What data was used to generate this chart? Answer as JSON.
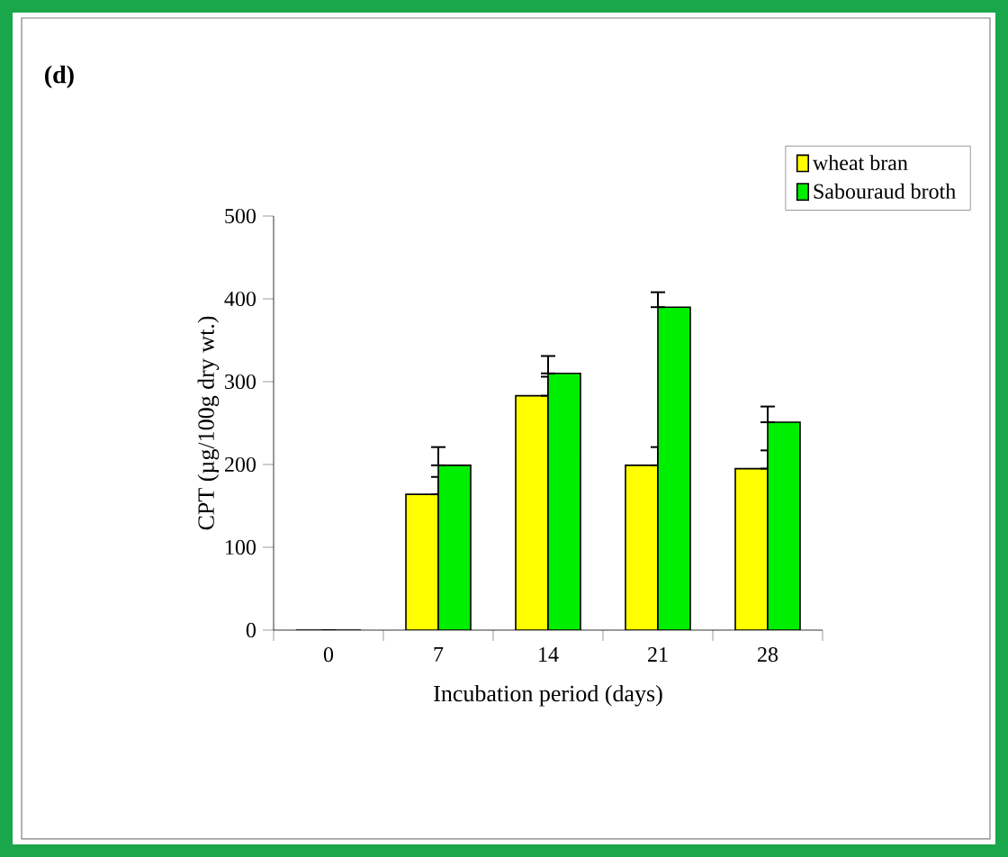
{
  "chart_data": {
    "type": "bar",
    "title": "(d)",
    "xlabel": "Incubation period (days)",
    "ylabel": "CPT (µg/100g dry wt.)",
    "categories": [
      "0",
      "7",
      "14",
      "21",
      "28"
    ],
    "series": [
      {
        "name": "wheat bran",
        "color": "#ffff00",
        "values": [
          0,
          164,
          283,
          199,
          195
        ],
        "errors": [
          null,
          [
            164,
            185
          ],
          [
            283,
            306
          ],
          [
            199,
            221
          ],
          [
            195,
            217
          ]
        ]
      },
      {
        "name": "Sabouraud broth",
        "color": "#00ee00",
        "values": [
          0,
          199,
          310,
          390,
          251
        ],
        "errors": [
          null,
          [
            199,
            221
          ],
          [
            310,
            331
          ],
          [
            390,
            408
          ],
          [
            251,
            270
          ]
        ]
      }
    ],
    "ylim": [
      0,
      500
    ],
    "yticks": [
      0,
      100,
      200,
      300,
      400,
      500
    ],
    "legend": "top right",
    "grid": false
  }
}
